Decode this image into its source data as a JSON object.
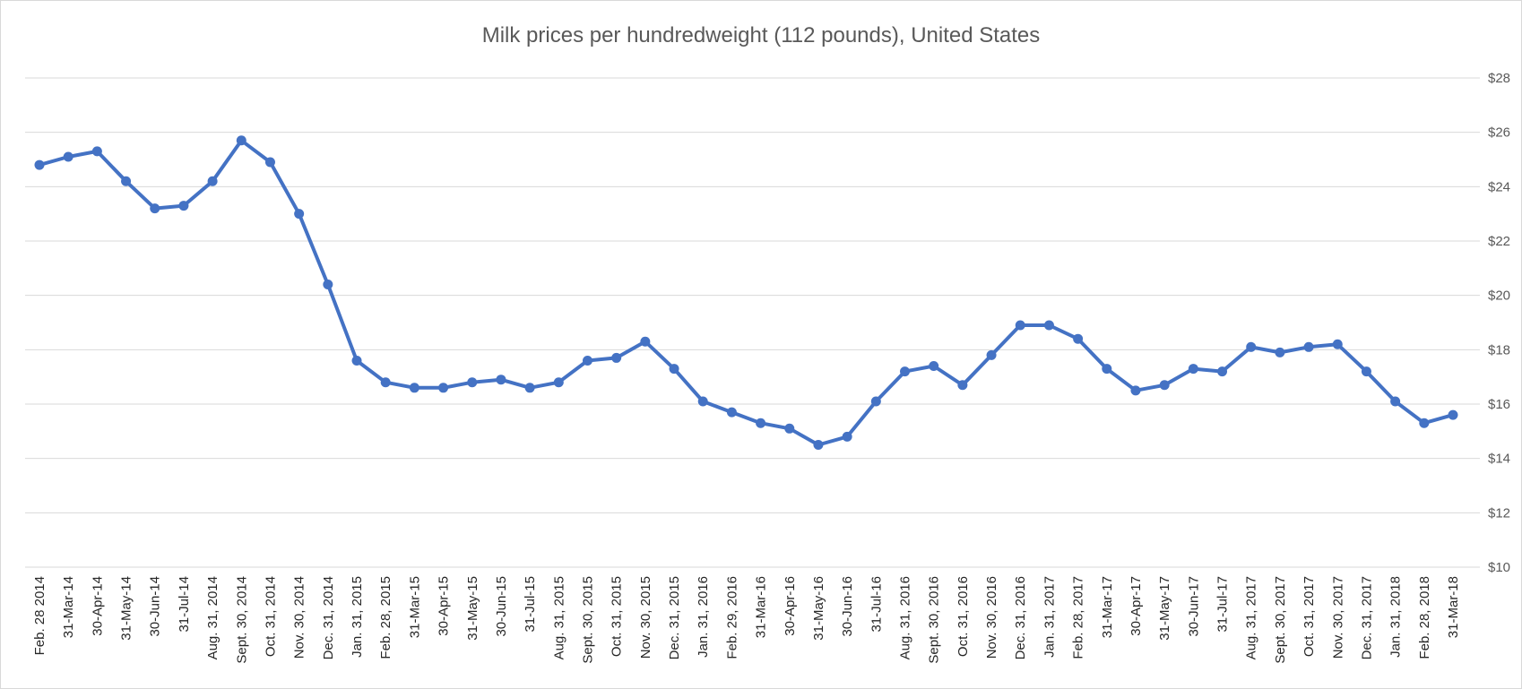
{
  "chart_data": {
    "type": "line",
    "title": "Milk prices per hundredweight (112 pounds), United States",
    "xlabel": "",
    "ylabel": "",
    "ylim": [
      10,
      28
    ],
    "ytick_step": 2,
    "ytick_labels": [
      "$10",
      "$12",
      "$14",
      "$16",
      "$18",
      "$20",
      "$22",
      "$24",
      "$26",
      "$28"
    ],
    "y_axis_side": "right",
    "grid": true,
    "legend": "none",
    "series_color": "#4472C4",
    "categories": [
      "Feb. 28 2014",
      "31-Mar-14",
      "30-Apr-14",
      "31-May-14",
      "30-Jun-14",
      "31-Jul-14",
      "Aug. 31, 2014",
      "Sept. 30, 2014",
      "Oct. 31, 2014",
      "Nov. 30, 2014",
      "Dec. 31, 2014",
      "Jan. 31, 2015",
      "Feb. 28, 2015",
      "31-Mar-15",
      "30-Apr-15",
      "31-May-15",
      "30-Jun-15",
      "31-Jul-15",
      "Aug. 31, 2015",
      "Sept. 30, 2015",
      "Oct. 31, 2015",
      "Nov. 30, 2015",
      "Dec. 31, 2015",
      "Jan. 31, 2016",
      "Feb. 29, 2016",
      "31-Mar-16",
      "30-Apr-16",
      "31-May-16",
      "30-Jun-16",
      "31-Jul-16",
      "Aug. 31, 2016",
      "Sept. 30, 2016",
      "Oct. 31, 2016",
      "Nov. 30, 2016",
      "Dec. 31, 2016",
      "Jan. 31, 2017",
      "Feb. 28, 2017",
      "31-Mar-17",
      "30-Apr-17",
      "31-May-17",
      "30-Jun-17",
      "31-Jul-17",
      "Aug. 31, 2017",
      "Sept. 30, 2017",
      "Oct. 31, 2017",
      "Nov. 30, 2017",
      "Dec. 31, 2017",
      "Jan. 31, 2018",
      "Feb. 28, 2018",
      "31-Mar-18"
    ],
    "series": [
      {
        "name": "Milk price",
        "values": [
          24.8,
          25.1,
          25.3,
          24.2,
          23.2,
          23.3,
          24.2,
          25.7,
          24.9,
          23.0,
          20.4,
          17.6,
          16.8,
          16.6,
          16.6,
          16.8,
          16.9,
          16.6,
          16.8,
          17.6,
          17.7,
          18.3,
          17.3,
          16.1,
          15.7,
          15.3,
          15.1,
          14.5,
          14.8,
          16.1,
          17.2,
          17.4,
          16.7,
          17.8,
          18.9,
          18.9,
          18.4,
          17.3,
          16.5,
          16.7,
          17.3,
          17.2,
          18.1,
          17.9,
          18.1,
          18.2,
          17.2,
          16.1,
          15.3,
          15.6
        ]
      }
    ]
  }
}
